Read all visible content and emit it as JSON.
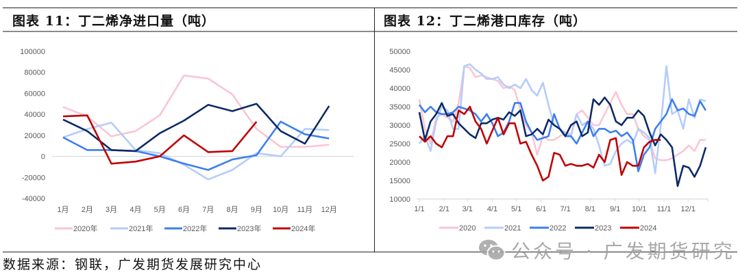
{
  "left_panel": {
    "title": "图表 11：丁二烯净进口量（吨）"
  },
  "right_panel": {
    "title": "图表 12：丁二烯港口库存（吨）"
  },
  "footer": {
    "source": "数据来源：钢联，广发期货发展研究中心",
    "watermark": "公众号 · 广发期货研究"
  },
  "colors": {
    "2020": "#f9c6d3",
    "2021": "#b3cdfb",
    "2022": "#3d7ef0",
    "2023": "#0d2a66",
    "2024": "#c00000"
  },
  "chart_data": [
    {
      "type": "line",
      "title": "丁二烯净进口量（吨）",
      "xlabel": "",
      "ylabel": "",
      "ylim": [
        -40000,
        100000
      ],
      "yticks": [
        100000,
        80000,
        60000,
        40000,
        20000,
        0,
        -20000,
        -40000
      ],
      "grid": false,
      "legend_position": "bottom",
      "categories": [
        "1月",
        "2月",
        "3月",
        "4月",
        "5月",
        "6月",
        "7月",
        "8月",
        "9月",
        "10月",
        "11月",
        "12月"
      ],
      "series": [
        {
          "name": "2020年",
          "key": "2020",
          "values": [
            47000,
            38000,
            19000,
            24000,
            39000,
            77000,
            74000,
            59000,
            26000,
            9000,
            9000,
            11000
          ]
        },
        {
          "name": "2021年",
          "key": "2021",
          "values": [
            18000,
            26000,
            32000,
            6000,
            3000,
            -8000,
            -22000,
            -13000,
            3000,
            0,
            26000,
            25000
          ]
        },
        {
          "name": "2022年",
          "key": "2022",
          "values": [
            18000,
            6000,
            6000,
            5000,
            0,
            -7000,
            -13000,
            -3000,
            1000,
            33000,
            21000,
            17000
          ]
        },
        {
          "name": "2023年",
          "key": "2023",
          "values": [
            35000,
            24000,
            6000,
            5000,
            22000,
            34000,
            49000,
            43000,
            50000,
            24000,
            12000,
            48000
          ]
        },
        {
          "name": "2024年",
          "key": "2024",
          "values": [
            38000,
            39000,
            -7000,
            -5000,
            0,
            20000,
            4000,
            5000,
            33000,
            null,
            null,
            null
          ]
        }
      ]
    },
    {
      "type": "line",
      "title": "丁二烯港口库存（吨）",
      "xlabel": "",
      "ylabel": "",
      "ylim": [
        10000,
        50000
      ],
      "yticks": [
        50000,
        45000,
        40000,
        35000,
        30000,
        25000,
        20000,
        15000,
        10000
      ],
      "grid": false,
      "legend_position": "bottom",
      "x_tick_labels": [
        "1/1",
        "2/1",
        "3/1",
        "4/1",
        "5/1",
        "6/1",
        "7/1",
        "8/1",
        "9/1",
        "10/1",
        "11/1",
        "12/1"
      ],
      "x_unit": "week (52 points per year, starting 1/1)",
      "series": [
        {
          "name": "2020",
          "key": "2020",
          "values": [
            37000,
            29000,
            25000,
            32000,
            33000,
            32000,
            31000,
            36000,
            46000,
            45500,
            43000,
            43500,
            43000,
            42500,
            42000,
            40000,
            40500,
            39500,
            34000,
            30000,
            28000,
            22000,
            27000,
            26000,
            26000,
            27000,
            28000,
            27500,
            33000,
            34000,
            32000,
            30000,
            30000,
            33000,
            36000,
            39000,
            35500,
            33000,
            33000,
            29000,
            27000,
            26000,
            21000,
            20500,
            20500,
            21000,
            22000,
            23000,
            24500,
            23000,
            26000,
            26000
          ]
        },
        {
          "name": "2021",
          "key": "2021",
          "values": [
            25000,
            27000,
            23000,
            31000,
            35000,
            34000,
            29000,
            29000,
            46000,
            46500,
            45000,
            44000,
            42500,
            42500,
            43000,
            41000,
            40000,
            41000,
            40000,
            42500,
            39500,
            38000,
            41500,
            35500,
            30000,
            29000,
            28000,
            27000,
            33000,
            30000,
            31000,
            29000,
            24500,
            19000,
            19500,
            23000,
            25000,
            26000,
            25000,
            29000,
            28000,
            26500,
            17000,
            30000,
            46000,
            33000,
            34000,
            29000,
            37000,
            32000,
            37000,
            36500
          ]
        },
        {
          "name": "2022",
          "key": "2022",
          "values": [
            35500,
            33500,
            35000,
            33500,
            33000,
            33000,
            33500,
            35000,
            34500,
            34000,
            33000,
            31000,
            33000,
            30500,
            27000,
            28000,
            31000,
            36000,
            36000,
            31000,
            28000,
            26000,
            26500,
            27000,
            33000,
            29000,
            27000,
            27000,
            25000,
            28000,
            31000,
            27000,
            29000,
            29000,
            28000,
            28500,
            27000,
            28000,
            26000,
            17500,
            22000,
            24000,
            29000,
            31000,
            33000,
            37000,
            34000,
            34500,
            33000,
            32500,
            36500,
            34000
          ]
        },
        {
          "name": "2023",
          "key": "2023",
          "values": [
            33500,
            26000,
            31000,
            33000,
            36000,
            32500,
            33000,
            30500,
            29000,
            27500,
            26500,
            30500,
            30500,
            31500,
            32000,
            31500,
            33500,
            32500,
            34000,
            27000,
            27500,
            29000,
            27500,
            31500,
            30000,
            29000,
            27000,
            30000,
            31000,
            27000,
            28000,
            37000,
            35500,
            37500,
            35500,
            31000,
            30000,
            32000,
            32000,
            34000,
            32500,
            28000,
            24500,
            27500,
            26000,
            24000,
            13500,
            19000,
            18500,
            16000,
            19000,
            24000
          ]
        },
        {
          "name": "2024",
          "key": "2024",
          "values": [
            27000,
            25500,
            27000,
            25000,
            24000,
            27000,
            27000,
            34000,
            33000,
            35000,
            31000,
            29000,
            25000,
            28500,
            32000,
            27500,
            30500,
            30500,
            25000,
            25500,
            22000,
            19000,
            15000,
            16000,
            22500,
            22000,
            19000,
            19500,
            19000,
            19000,
            19500,
            18500,
            22000,
            20000,
            26000,
            26500,
            16500,
            20000,
            19000,
            19000,
            24000,
            25500,
            26000,
            26000,
            null,
            null,
            null,
            null,
            null,
            null,
            null,
            null
          ]
        }
      ]
    }
  ]
}
